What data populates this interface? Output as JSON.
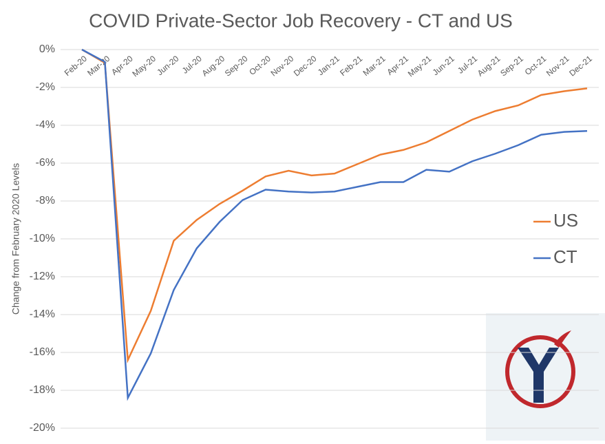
{
  "chart_data": {
    "type": "line",
    "title": "COVID Private-Sector Job Recovery - CT and US",
    "y_label": "Change from February 2020 Levels",
    "categories": [
      "Feb-20",
      "Mar-20",
      "Apr-20",
      "May-20",
      "Jun-20",
      "Jul-20",
      "Aug-20",
      "Sep-20",
      "Oct-20",
      "Nov-20",
      "Dec-20",
      "Jan-21",
      "Feb-21",
      "Mar-21",
      "Apr-21",
      "May-21",
      "Jun-21",
      "Jul-21",
      "Aug-21",
      "Sep-21",
      "Oct-21",
      "Nov-21",
      "Dec-21"
    ],
    "series": [
      {
        "name": "US",
        "color": "#ed7d31",
        "values": [
          0,
          -0.7,
          -16.4,
          -13.8,
          -10.1,
          -9.0,
          -8.15,
          -7.45,
          -6.7,
          -6.4,
          -6.65,
          -6.55,
          -6.05,
          -5.55,
          -5.3,
          -4.9,
          -4.3,
          -3.7,
          -3.25,
          -2.95,
          -2.4,
          -2.2,
          -2.05
        ]
      },
      {
        "name": "CT",
        "color": "#4472c4",
        "values": [
          0,
          -0.65,
          -18.4,
          -16.05,
          -12.7,
          -10.5,
          -9.1,
          -7.95,
          -7.4,
          -7.5,
          -7.55,
          -7.5,
          -7.25,
          -7.0,
          -7.0,
          -6.35,
          -6.45,
          -5.9,
          -5.5,
          -5.05,
          -4.5,
          -4.35,
          -4.3
        ]
      }
    ],
    "ylim": [
      -20,
      0
    ],
    "yticks": [
      {
        "value": 0,
        "label": "0%"
      },
      {
        "value": -2,
        "label": "-2%"
      },
      {
        "value": -4,
        "label": "-4%"
      },
      {
        "value": -6,
        "label": "-6%"
      },
      {
        "value": -8,
        "label": "-8%"
      },
      {
        "value": -10,
        "label": "-10%"
      },
      {
        "value": -12,
        "label": "-12%"
      },
      {
        "value": -14,
        "label": "-14%"
      },
      {
        "value": -16,
        "label": "-16%"
      },
      {
        "value": -18,
        "label": "-18%"
      },
      {
        "value": -20,
        "label": "-20%"
      }
    ],
    "grid": true
  }
}
